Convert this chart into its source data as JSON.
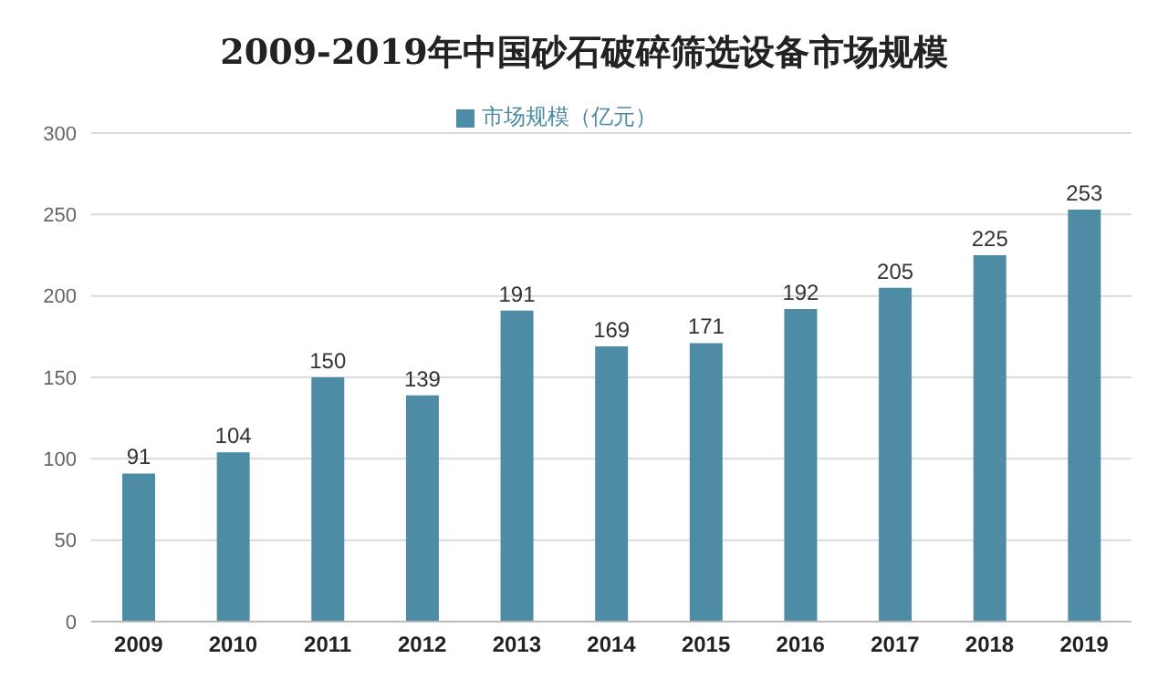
{
  "chart_data": {
    "type": "bar",
    "title": "2009-2019年中国砂石破碎筛选设备市场规模",
    "categories": [
      "2009",
      "2010",
      "2011",
      "2012",
      "2013",
      "2014",
      "2015",
      "2016",
      "2017",
      "2018",
      "2019"
    ],
    "series": [
      {
        "name": "市场规模（亿元）",
        "color": "#4e8ba5",
        "values": [
          91,
          104,
          150,
          139,
          191,
          169,
          171,
          192,
          205,
          225,
          253
        ]
      }
    ],
    "ylim": [
      0,
      300
    ],
    "yticks": [
      0,
      50,
      100,
      150,
      200,
      250,
      300
    ],
    "grid": "y",
    "legend": "top",
    "data_labels": true
  }
}
